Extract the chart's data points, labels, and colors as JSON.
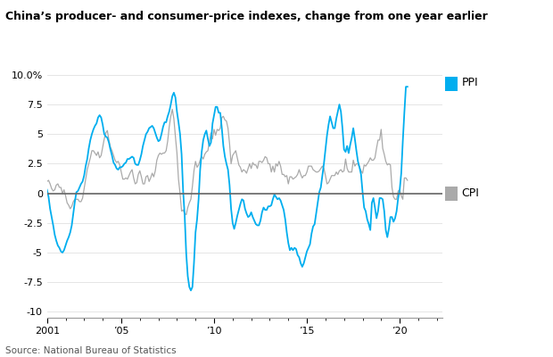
{
  "title": "China’s producer- and consumer-price indexes, change from one year earlier",
  "source": "Source: National Bureau of Statistics",
  "ppi_color": "#00AEEF",
  "cpi_color": "#AAAAAA",
  "zero_line_color": "#666666",
  "ylim": [
    -10.5,
    11.5
  ],
  "yticks": [
    -10.0,
    -7.5,
    -5.0,
    -2.5,
    0,
    2.5,
    5.0,
    7.5,
    10.0
  ],
  "xtick_labels": [
    "2001",
    "’05",
    "’10",
    "’15",
    "’20"
  ],
  "xtick_positions": [
    2001.0,
    2005.0,
    2010.0,
    2015.0,
    2020.0
  ],
  "legend": [
    {
      "label": "PPI",
      "color": "#00AEEF"
    },
    {
      "label": "CPI",
      "color": "#AAAAAA"
    }
  ],
  "ppi_monthly": [
    0.3,
    -0.3,
    -1.3,
    -2.0,
    -2.7,
    -3.5,
    -4.0,
    -4.4,
    -4.6,
    -4.9,
    -5.0,
    -4.8,
    -4.4,
    -4.0,
    -3.7,
    -3.3,
    -2.7,
    -1.7,
    -0.7,
    0.1,
    0.2,
    0.5,
    0.8,
    1.0,
    1.5,
    2.3,
    2.9,
    3.8,
    4.5,
    5.0,
    5.4,
    5.7,
    5.9,
    6.4,
    6.6,
    6.4,
    5.8,
    5.0,
    4.8,
    4.7,
    4.3,
    3.7,
    3.2,
    2.6,
    2.4,
    2.1,
    2.0,
    2.2,
    2.2,
    2.3,
    2.5,
    2.6,
    2.9,
    2.9,
    3.0,
    3.1,
    3.0,
    2.5,
    2.4,
    2.4,
    2.8,
    3.3,
    4.0,
    4.5,
    5.0,
    5.2,
    5.5,
    5.6,
    5.7,
    5.5,
    5.1,
    4.7,
    4.4,
    4.5,
    5.0,
    5.6,
    6.0,
    6.0,
    6.5,
    6.9,
    7.5,
    8.2,
    8.5,
    8.1,
    6.9,
    6.0,
    5.0,
    3.3,
    0.2,
    -1.9,
    -5.1,
    -7.0,
    -7.9,
    -8.2,
    -7.9,
    -5.9,
    -3.3,
    -2.2,
    -0.5,
    2.0,
    3.5,
    4.5,
    5.0,
    5.3,
    4.6,
    4.0,
    4.3,
    5.9,
    6.6,
    7.3,
    7.3,
    6.8,
    6.8,
    5.5,
    4.0,
    3.1,
    2.5,
    2.0,
    0.7,
    -1.3,
    -2.5,
    -3.0,
    -2.5,
    -1.9,
    -1.4,
    -0.9,
    -0.5,
    -0.6,
    -1.3,
    -1.7,
    -2.0,
    -1.9,
    -1.6,
    -2.0,
    -2.3,
    -2.6,
    -2.7,
    -2.7,
    -2.3,
    -1.6,
    -1.2,
    -1.4,
    -1.4,
    -1.1,
    -1.1,
    -1.0,
    -0.5,
    -0.1,
    -0.3,
    -0.5,
    -0.4,
    -0.6,
    -1.0,
    -1.4,
    -2.2,
    -3.3,
    -4.2,
    -4.8,
    -4.6,
    -4.8,
    -4.6,
    -4.7,
    -5.2,
    -5.4,
    -5.9,
    -6.2,
    -5.9,
    -5.4,
    -4.9,
    -4.6,
    -4.3,
    -3.4,
    -2.8,
    -2.6,
    -1.7,
    -0.8,
    0.1,
    0.5,
    1.5,
    2.5,
    3.7,
    4.9,
    5.8,
    6.5,
    6.0,
    5.5,
    5.5,
    6.3,
    6.9,
    7.5,
    6.9,
    5.5,
    3.7,
    3.5,
    4.0,
    3.4,
    4.1,
    4.7,
    5.5,
    4.6,
    3.6,
    2.7,
    2.2,
    1.6,
    0.1,
    -1.2,
    -1.5,
    -2.2,
    -2.6,
    -3.1,
    -0.8,
    -0.4,
    -1.2,
    -2.1,
    -1.5,
    -0.4,
    -0.4,
    -0.5,
    -1.5,
    -3.1,
    -3.7,
    -3.0,
    -2.0,
    -2.0,
    -2.4,
    -2.1,
    -1.5,
    -0.4,
    0.3,
    1.7,
    4.4,
    6.8,
    9.0,
    9.0
  ],
  "cpi_monthly": [
    1.0,
    1.1,
    0.8,
    0.4,
    0.2,
    0.3,
    0.7,
    0.8,
    0.5,
    0.5,
    0.0,
    0.3,
    -0.2,
    -0.8,
    -1.0,
    -1.3,
    -1.1,
    -0.7,
    -0.5,
    -0.5,
    -0.5,
    -0.7,
    -0.7,
    -0.4,
    0.4,
    1.2,
    2.0,
    2.5,
    3.0,
    3.6,
    3.6,
    3.4,
    3.2,
    3.5,
    3.0,
    3.2,
    3.9,
    4.6,
    5.1,
    5.3,
    4.5,
    3.9,
    3.6,
    3.2,
    2.8,
    2.6,
    2.7,
    2.4,
    1.8,
    1.2,
    1.2,
    1.3,
    1.2,
    1.5,
    1.8,
    2.0,
    1.3,
    0.8,
    0.9,
    1.6,
    1.9,
    1.4,
    0.8,
    0.8,
    1.4,
    1.5,
    1.0,
    1.3,
    1.7,
    1.4,
    1.9,
    2.8,
    3.2,
    3.4,
    3.3,
    3.4,
    3.4,
    3.6,
    4.4,
    5.6,
    6.5,
    7.1,
    6.3,
    4.8,
    3.4,
    1.2,
    0.0,
    -1.5,
    -1.4,
    -1.7,
    -1.8,
    -1.2,
    -0.8,
    -0.5,
    0.6,
    1.9,
    2.7,
    2.2,
    2.4,
    2.8,
    3.1,
    2.9,
    3.3,
    3.5,
    3.6,
    4.4,
    5.1,
    4.6,
    5.4,
    4.9,
    5.4,
    5.3,
    5.5,
    6.4,
    6.5,
    6.2,
    6.1,
    5.5,
    4.2,
    2.5,
    3.2,
    3.4,
    3.6,
    3.0,
    2.4,
    2.2,
    1.8,
    2.0,
    1.9,
    1.7,
    2.1,
    2.5,
    2.1,
    2.6,
    2.4,
    2.4,
    2.1,
    2.7,
    2.7,
    2.6,
    2.8,
    3.1,
    3.0,
    2.5,
    2.5,
    1.8,
    2.3,
    1.8,
    2.5,
    2.3,
    2.7,
    2.3,
    1.6,
    1.6,
    1.4,
    1.5,
    0.8,
    1.4,
    1.4,
    1.2,
    1.3,
    1.4,
    1.6,
    2.0,
    1.6,
    1.3,
    1.5,
    1.5,
    1.8,
    2.3,
    2.3,
    2.3,
    2.0,
    1.9,
    1.8,
    1.8,
    1.9,
    2.1,
    2.3,
    2.1,
    1.5,
    0.8,
    0.9,
    1.2,
    1.5,
    1.5,
    1.5,
    1.8,
    1.6,
    1.9,
    2.0,
    1.8,
    1.9,
    2.9,
    2.1,
    1.8,
    1.8,
    1.8,
    2.8,
    2.3,
    2.5,
    2.5,
    2.2,
    1.9,
    1.7,
    2.4,
    2.3,
    2.5,
    2.7,
    3.0,
    2.8,
    2.8,
    3.0,
    3.8,
    4.5,
    4.5,
    5.4,
    3.8,
    3.3,
    2.7,
    2.4,
    2.5,
    2.4,
    0.5,
    -0.3,
    -0.5,
    -0.5,
    0.2,
    0.3,
    -0.2,
    -0.5,
    1.3,
    1.3,
    1.1
  ]
}
